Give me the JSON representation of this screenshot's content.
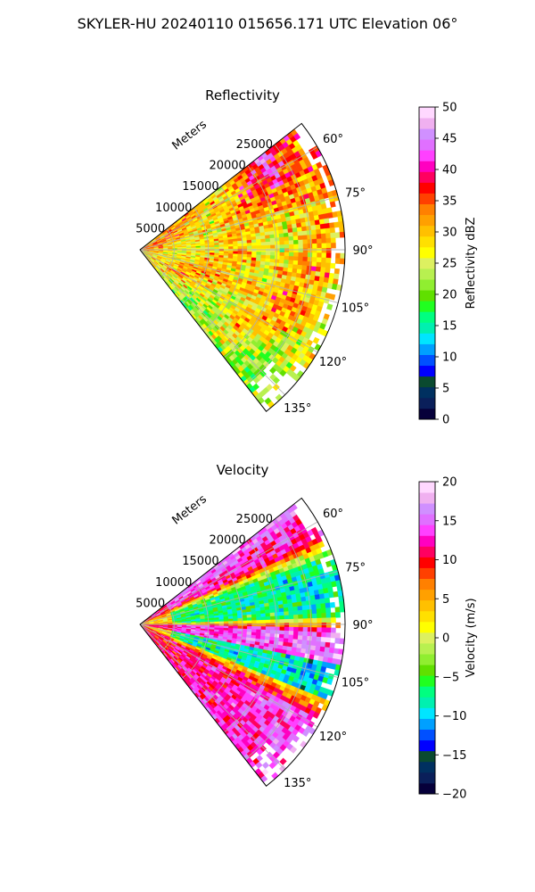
{
  "figure": {
    "suptitle": "SKYLER-HU  20240110  015656.171 UTC Elevation 06°"
  },
  "chart_data": [
    {
      "type": "heatmap",
      "subtype": "polar-sector (PPI radar sweep)",
      "title": "Reflectivity",
      "radial_label": "Meters",
      "radial_ticks": [
        "5000",
        "10000",
        "15000",
        "20000",
        "25000"
      ],
      "radial_max_m": 30000,
      "angle_range_deg": [
        52,
        142
      ],
      "angular_ticks": [
        "60°",
        "75°",
        "90°",
        "105°",
        "120°",
        "135°"
      ],
      "angular_tick_values": [
        60,
        75,
        90,
        105,
        120,
        135
      ],
      "colorbar": {
        "label": "Reflectivity dBZ",
        "min": 0,
        "max": 50,
        "ticks": [
          0,
          5,
          10,
          15,
          20,
          25,
          30,
          35,
          40,
          45,
          50
        ],
        "tick_labels": [
          "0",
          "5",
          "10",
          "15",
          "20",
          "25",
          "30",
          "35",
          "40",
          "45",
          "50"
        ],
        "colors": [
          "#06003a",
          "#0a1f5a",
          "#003060",
          "#0a4a30",
          "#0000ff",
          "#0050ff",
          "#00a0ff",
          "#00e5ff",
          "#00f0b0",
          "#00ff80",
          "#20ff20",
          "#60e000",
          "#90ee30",
          "#b8f050",
          "#ddf060",
          "#ffff00",
          "#ffe000",
          "#ffc000",
          "#ffa000",
          "#ff8000",
          "#ff4000",
          "#ff0000",
          "#ff0060",
          "#ff00c0",
          "#ff40ff",
          "#e070ff",
          "#d090ff",
          "#f0b0f0",
          "#ffd8ff"
        ]
      },
      "field_summary": "Mostly 25–32 dBZ (yellow/orange) with embedded 35–42 dBZ cores (red/magenta) near the 60°–75° edge and scattered bands; green 15–22 dBZ speckle along the 130°–140° edge."
    },
    {
      "type": "heatmap",
      "subtype": "polar-sector (PPI radar sweep)",
      "title": "Velocity",
      "radial_label": "Meters",
      "radial_ticks": [
        "5000",
        "10000",
        "15000",
        "20000",
        "25000"
      ],
      "radial_max_m": 30000,
      "angle_range_deg": [
        52,
        142
      ],
      "angular_ticks": [
        "60°",
        "75°",
        "90°",
        "105°",
        "120°",
        "135°"
      ],
      "angular_tick_values": [
        60,
        75,
        90,
        105,
        120,
        135
      ],
      "colorbar": {
        "label": "Velocity (m/s)",
        "min": -20,
        "max": 20,
        "ticks": [
          -20,
          -15,
          -10,
          -5,
          0,
          5,
          10,
          15,
          20
        ],
        "tick_labels": [
          "−20",
          "−15",
          "−10",
          "−5",
          "0",
          "5",
          "10",
          "15",
          "20"
        ],
        "colors": [
          "#06003a",
          "#0a1f5a",
          "#003060",
          "#0a4a30",
          "#0000ff",
          "#0050ff",
          "#00a0ff",
          "#00e5ff",
          "#00f0b0",
          "#00ff80",
          "#20ff20",
          "#60e000",
          "#90ee30",
          "#b8f050",
          "#ddf060",
          "#ffff00",
          "#ffe000",
          "#ffc000",
          "#ffa000",
          "#ff8000",
          "#ff4000",
          "#ff0000",
          "#ff0060",
          "#ff00c0",
          "#ff40ff",
          "#e070ff",
          "#d090ff",
          "#f0b0f0",
          "#ffd8ff"
        ]
      },
      "field_summary": "Red/magenta +8 to +18 m/s near the 60°–65° edge, green/cyan −5 to −10 m/s around 70°–88°, magenta/violet +12 to +16 m/s band near 93°–100°, cyan/green near 105°–110°, red/magenta +10 to +16 m/s toward 120°–140°."
    }
  ]
}
